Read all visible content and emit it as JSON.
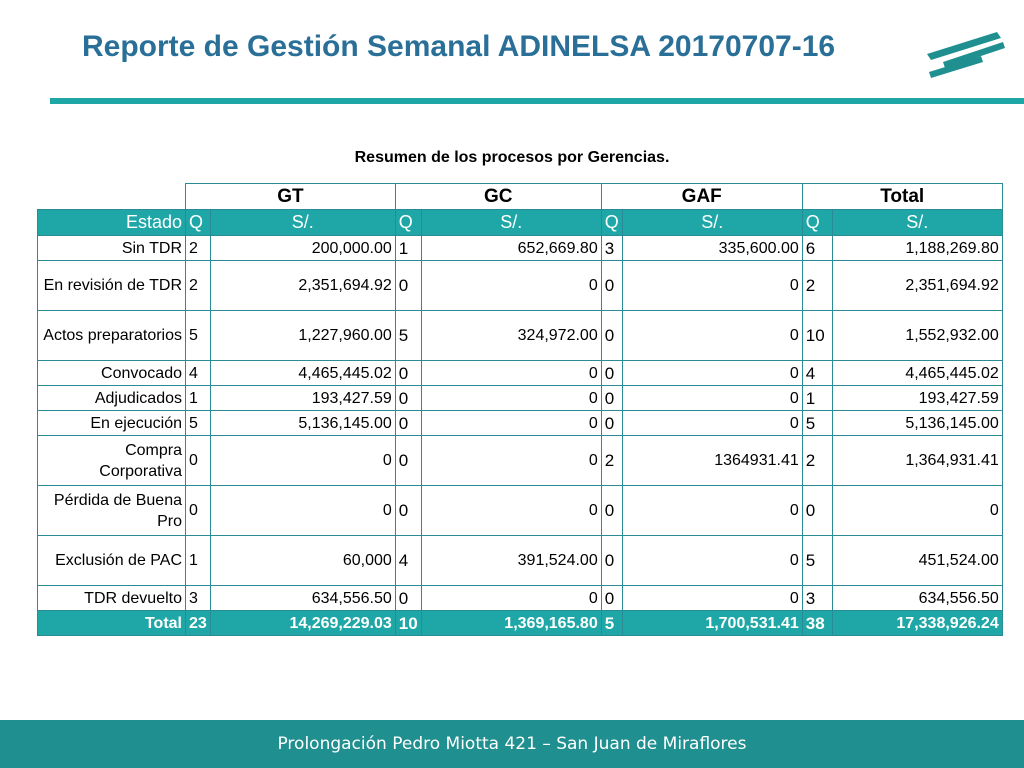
{
  "title": "Reporte de Gestión Semanal ADINELSA 20170707-16",
  "caption": "Resumen de los procesos por Gerencias.",
  "logo_icon": "adinelsa-stripes-logo",
  "colors": {
    "accent": "#1fa7a7",
    "title": "#2a6f97",
    "footer": "#1f8f8f"
  },
  "table": {
    "groups": [
      "GT",
      "GC",
      "GAF",
      "Total"
    ],
    "header": {
      "estado": "Estado",
      "cols": [
        "Q",
        "S/.",
        "Q",
        "S/.",
        "Q",
        "S/.",
        "Q",
        "S/."
      ]
    },
    "rows": [
      {
        "estado": "Sin TDR",
        "vals": [
          "2",
          "200,000.00",
          "1",
          "652,669.80",
          "3",
          "335,600.00",
          "6",
          "1,188,269.80"
        ]
      },
      {
        "estado": "En revisión de TDR",
        "vals": [
          "2",
          "2,351,694.92",
          "0",
          "0",
          "0",
          "0",
          "2",
          "2,351,694.92"
        ]
      },
      {
        "estado": "Actos preparatorios",
        "vals": [
          "5",
          "1,227,960.00",
          "5",
          "324,972.00",
          "0",
          "0",
          "10",
          "1,552,932.00"
        ]
      },
      {
        "estado": "Convocado",
        "vals": [
          "4",
          "4,465,445.02",
          "0",
          "0",
          "0",
          "0",
          "4",
          "4,465,445.02"
        ]
      },
      {
        "estado": "Adjudicados",
        "vals": [
          "1",
          "193,427.59",
          "0",
          "0",
          "0",
          "0",
          "1",
          "193,427.59"
        ]
      },
      {
        "estado": "En ejecución",
        "vals": [
          "5",
          "5,136,145.00",
          "0",
          "0",
          "0",
          "0",
          "5",
          "5,136,145.00"
        ]
      },
      {
        "estado": "Compra Corporativa",
        "vals": [
          "0",
          "0",
          "0",
          "0",
          "2",
          "1364931.41",
          "2",
          "1,364,931.41"
        ]
      },
      {
        "estado": "Pérdida de Buena Pro",
        "vals": [
          "0",
          "0",
          "0",
          "0",
          "0",
          "0",
          "0",
          "0"
        ]
      },
      {
        "estado": "Exclusión de PAC",
        "vals": [
          "1",
          "60,000",
          "4",
          "391,524.00",
          "0",
          "0",
          "5",
          "451,524.00"
        ]
      },
      {
        "estado": "TDR devuelto",
        "vals": [
          "3",
          "634,556.50",
          "0",
          "0",
          "0",
          "0",
          "3",
          "634,556.50"
        ]
      }
    ],
    "total": {
      "estado": "Total",
      "vals": [
        "23",
        "14,269,229.03",
        "10",
        "1,369,165.80",
        "5",
        "1,700,531.41",
        "38",
        "17,338,926.24"
      ]
    }
  },
  "footer": "Prolongación Pedro Miotta 421 – San Juan de Miraflores"
}
